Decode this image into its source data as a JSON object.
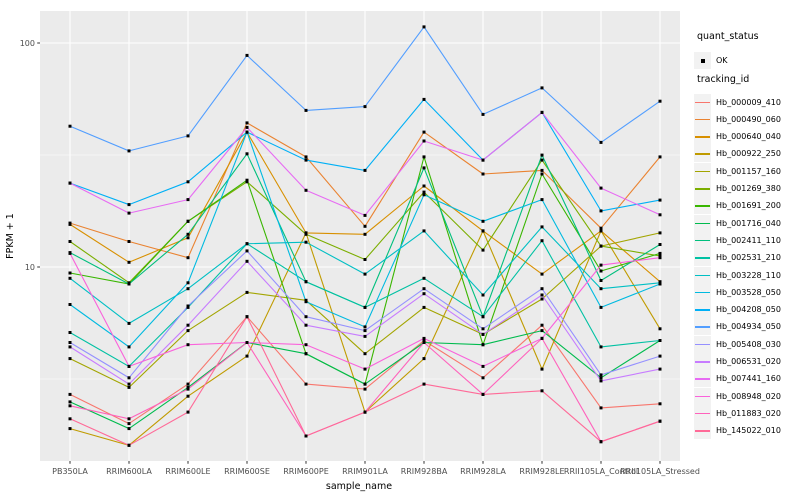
{
  "chart_data": {
    "type": "line",
    "title": "",
    "xlabel": "sample_name",
    "ylabel": "FPKM + 1",
    "x_scale": "discrete",
    "y_scale": "log10",
    "ylim": [
      1.36,
      139
    ],
    "y_major_ticks": [
      10,
      100
    ],
    "y_tick_labels": [
      "10",
      "100"
    ],
    "y_minor_gridlines": [
      3.1623,
      31.623
    ],
    "grid": "white gridlines on gray panel",
    "legend_position": "right",
    "point_shape": "small black point",
    "point_color": "#000000",
    "categories": [
      "PB350LA",
      "RRIM600LA",
      "RRIM600LE",
      "RRIM600SE",
      "RRIM600PE",
      "RRIM901LA",
      "RRIM928BA",
      "RRIM928LA",
      "RRIM928LE",
      "RRII105LA_Control",
      "RRII105LA_Stressed"
    ],
    "series": [
      {
        "name": "Hb_000009_410",
        "color": "#F8766D",
        "values": [
          2.7,
          2.0,
          3.0,
          6.0,
          3.0,
          2.85,
          4.7,
          3.2,
          5.5,
          2.35,
          2.45
        ]
      },
      {
        "name": "Hb_000490_060",
        "color": "#EA8331",
        "values": [
          15.7,
          13.0,
          11.0,
          44.0,
          31.0,
          15.2,
          40.0,
          26.0,
          27.0,
          14.9,
          31.0
        ]
      },
      {
        "name": "Hb_000640_040",
        "color": "#D89000",
        "values": [
          15.5,
          10.5,
          13.5,
          40.0,
          14.2,
          14.0,
          23.0,
          14.5,
          9.3,
          14.5,
          8.6
        ]
      },
      {
        "name": "Hb_000922_250",
        "color": "#C09B00",
        "values": [
          1.9,
          1.6,
          2.65,
          4.0,
          14.2,
          2.25,
          3.9,
          14.5,
          3.5,
          14.5,
          5.3
        ]
      },
      {
        "name": "Hb_001157_160",
        "color": "#A3A500",
        "values": [
          3.9,
          2.9,
          5.2,
          7.7,
          7.1,
          4.1,
          6.6,
          5.0,
          7.2,
          12.4,
          14.2
        ]
      },
      {
        "name": "Hb_001269_380",
        "color": "#7CAE00",
        "values": [
          13.0,
          8.5,
          16.0,
          24.0,
          14.0,
          10.8,
          21.6,
          11.9,
          30.0,
          12.4,
          11.2
        ]
      },
      {
        "name": "Hb_001691_200",
        "color": "#39B600",
        "values": [
          9.4,
          8.4,
          16.0,
          24.4,
          4.1,
          3.0,
          31.0,
          4.5,
          26.0,
          9.6,
          11.5
        ]
      },
      {
        "name": "Hb_001716_040",
        "color": "#00BB4E",
        "values": [
          2.5,
          1.9,
          2.9,
          4.6,
          4.1,
          3.0,
          4.6,
          4.5,
          5.2,
          3.2,
          4.7
        ]
      },
      {
        "name": "Hb_002411_110",
        "color": "#00BF7D",
        "values": [
          11.6,
          8.4,
          14.0,
          32.0,
          8.6,
          6.6,
          27.7,
          6.0,
          31.6,
          8.7,
          12.6
        ]
      },
      {
        "name": "Hb_002531_210",
        "color": "#00C1A3",
        "values": [
          5.1,
          3.6,
          6.6,
          12.7,
          8.6,
          6.6,
          8.9,
          6.0,
          13.1,
          4.4,
          4.7
        ]
      },
      {
        "name": "Hb_003228_110",
        "color": "#00BFC4",
        "values": [
          8.9,
          5.6,
          8.0,
          12.7,
          12.9,
          9.3,
          14.5,
          7.5,
          15.1,
          8.0,
          8.5
        ]
      },
      {
        "name": "Hb_003528_050",
        "color": "#00BAE0",
        "values": [
          6.8,
          4.4,
          8.5,
          40.0,
          7.0,
          5.4,
          21.0,
          16.0,
          20.0,
          6.6,
          8.4
        ]
      },
      {
        "name": "Hb_004208_050",
        "color": "#00B0F6",
        "values": [
          23.7,
          19.0,
          24.0,
          40.0,
          30.0,
          27.0,
          56.0,
          30.0,
          49.0,
          17.8,
          19.9
        ]
      },
      {
        "name": "Hb_004934_050",
        "color": "#529EFF",
        "values": [
          42.5,
          33.0,
          38.5,
          88.0,
          50.0,
          52.0,
          118.0,
          48.0,
          63.0,
          36.0,
          55.0
        ]
      },
      {
        "name": "Hb_005408_030",
        "color": "#9590FF",
        "values": [
          4.6,
          3.2,
          6.7,
          11.8,
          6.0,
          5.2,
          8.0,
          5.3,
          8.0,
          3.3,
          4.0
        ]
      },
      {
        "name": "Hb_006531_020",
        "color": "#C77CFF",
        "values": [
          4.4,
          3.0,
          5.5,
          10.6,
          5.5,
          4.9,
          7.6,
          5.0,
          7.5,
          3.1,
          3.5
        ]
      },
      {
        "name": "Hb_007441_160",
        "color": "#E76BF3",
        "values": [
          23.7,
          17.4,
          20.0,
          42.0,
          22.0,
          17.0,
          36.5,
          30.0,
          49.0,
          22.5,
          17.1
        ]
      },
      {
        "name": "Hb_008948_020",
        "color": "#FA62DB",
        "values": [
          11.5,
          3.6,
          4.5,
          4.6,
          4.5,
          3.5,
          4.8,
          3.6,
          4.8,
          10.2,
          11.0
        ]
      },
      {
        "name": "Hb_011883_020",
        "color": "#FF62BC",
        "values": [
          2.4,
          2.1,
          2.85,
          4.6,
          1.76,
          2.25,
          4.6,
          2.7,
          4.8,
          1.66,
          2.05
        ]
      },
      {
        "name": "Hb_145022_010",
        "color": "#FF6A98",
        "values": [
          2.1,
          1.6,
          2.25,
          6.0,
          1.76,
          2.25,
          3.0,
          2.7,
          2.8,
          1.66,
          2.05
        ]
      }
    ]
  },
  "legend": {
    "quant_status": {
      "title": "quant_status",
      "items": [
        {
          "label": "OK",
          "marker": "black-point"
        }
      ]
    },
    "tracking_id": {
      "title": "tracking_id"
    }
  },
  "colors": {
    "panel_bg": "#EBEBEB",
    "gridline": "#FFFFFF",
    "tick_text": "#4D4D4D",
    "axis_title": "#000000",
    "legend_key_bg": "#F2F2F2",
    "point": "#000000"
  }
}
